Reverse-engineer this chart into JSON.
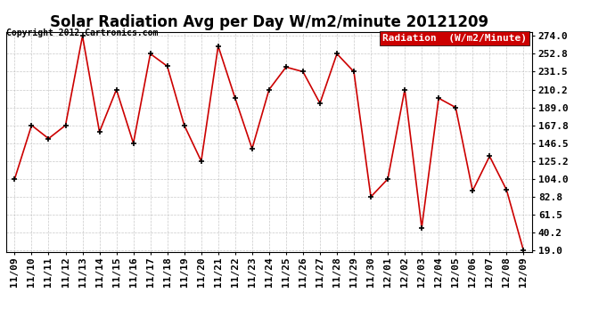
{
  "title": "Solar Radiation Avg per Day W/m2/minute 20121209",
  "copyright": "Copyright 2012 Cartronics.com",
  "legend_label": "Radiation  (W/m2/Minute)",
  "x_labels": [
    "11/09",
    "11/10",
    "11/11",
    "11/12",
    "11/13",
    "11/14",
    "11/15",
    "11/16",
    "11/17",
    "11/18",
    "11/19",
    "11/20",
    "11/21",
    "11/22",
    "11/23",
    "11/24",
    "11/25",
    "11/26",
    "11/27",
    "11/28",
    "11/29",
    "11/30",
    "12/01",
    "12/02",
    "12/03",
    "12/04",
    "12/05",
    "12/06",
    "12/07",
    "12/08",
    "12/09"
  ],
  "y_values": [
    104.0,
    167.8,
    152.0,
    167.8,
    274.0,
    160.0,
    210.2,
    146.5,
    252.8,
    238.0,
    167.8,
    125.2,
    262.0,
    200.0,
    140.0,
    210.2,
    237.0,
    231.5,
    194.0,
    252.8,
    231.5,
    82.8,
    104.0,
    210.2,
    46.0,
    200.0,
    189.0,
    90.0,
    131.0,
    91.0,
    19.0
  ],
  "y_ticks": [
    19.0,
    40.2,
    61.5,
    82.8,
    104.0,
    125.2,
    146.5,
    167.8,
    189.0,
    210.2,
    231.5,
    252.8,
    274.0
  ],
  "ylim_min": 19.0,
  "ylim_max": 274.0,
  "line_color": "#cc0000",
  "marker_color": "#000000",
  "bg_color": "#ffffff",
  "grid_color": "#bbbbbb",
  "legend_bg": "#cc0000",
  "legend_text_color": "#ffffff",
  "title_fontsize": 12,
  "copyright_fontsize": 7,
  "tick_fontsize": 8,
  "legend_fontsize": 8
}
